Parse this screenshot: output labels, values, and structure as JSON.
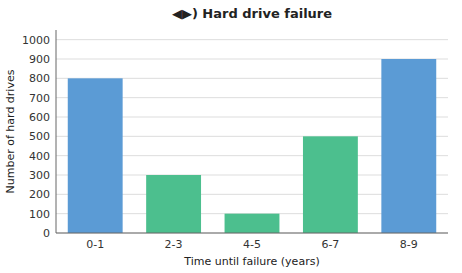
{
  "chart_data": {
    "type": "bar",
    "title": "◀▶) Hard drive failure",
    "xlabel": "Time until failure (years)",
    "ylabel": "Number of hard drives",
    "categories": [
      "0-1",
      "2-3",
      "4-5",
      "6-7",
      "8-9"
    ],
    "values": [
      800,
      300,
      100,
      500,
      900
    ],
    "colors": [
      "#5b9bd5",
      "#4cbf8e",
      "#4cbf8e",
      "#4cbf8e",
      "#5b9bd5"
    ],
    "ylim": [
      0,
      1050
    ],
    "yticks": [
      0,
      100,
      200,
      300,
      400,
      500,
      600,
      700,
      800,
      900,
      1000
    ],
    "grid": true
  }
}
